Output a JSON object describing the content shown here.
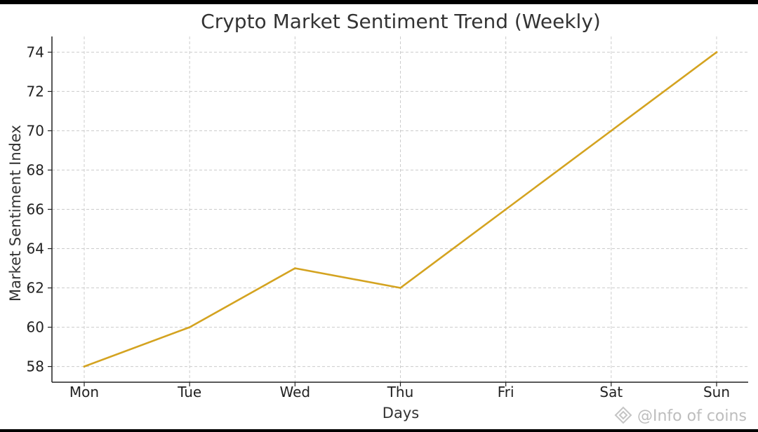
{
  "chart_data": {
    "type": "line",
    "title": "Crypto Market Sentiment Trend (Weekly)",
    "xlabel": "Days",
    "ylabel": "Market Sentiment Index",
    "categories": [
      "Mon",
      "Tue",
      "Wed",
      "Thu",
      "Fri",
      "Sat",
      "Sun"
    ],
    "values": [
      58,
      60,
      63,
      62,
      66,
      70,
      74
    ],
    "yticks": [
      58,
      60,
      62,
      64,
      66,
      68,
      70,
      72,
      74
    ],
    "ylim": [
      57.2,
      74.8
    ],
    "grid": true,
    "line_color": "#D4A320",
    "grid_color": "#cccccc"
  },
  "watermark": {
    "text": "@Info of coins",
    "icon": "diamond-logo-icon"
  }
}
